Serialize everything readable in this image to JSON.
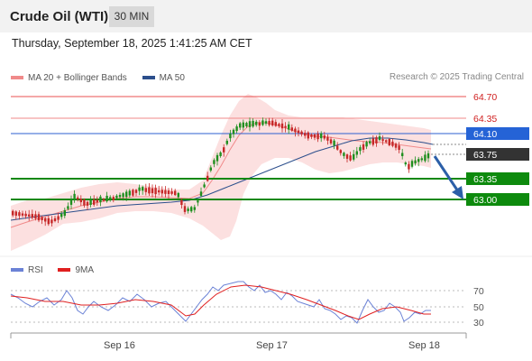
{
  "header": {
    "title": "Crude Oil (WTI)",
    "timeframe": "30 MIN"
  },
  "datetime": "Thursday, September 18, 2025 1:41:25 AM CET",
  "legend": [
    {
      "label": "MA 20 + Bollinger Bands",
      "color": "#f08a8a"
    },
    {
      "label": "MA 50",
      "color": "#2c4f8c"
    }
  ],
  "credit": "Research © 2025 Trading Central",
  "levels": [
    {
      "label": "64.70",
      "style": "red-text",
      "line": "#e85050"
    },
    {
      "label": "64.35",
      "style": "red-text",
      "line": "#f08a8a"
    },
    {
      "label": "64.10",
      "style": "blue-box",
      "line": "#2c5fd0"
    },
    {
      "label": "63.75",
      "style": "black-box",
      "line": "#888888"
    },
    {
      "label": "63.35",
      "style": "green-box",
      "line": "#118811"
    },
    {
      "label": "63.00",
      "style": "green-box",
      "line": "#118811"
    }
  ],
  "rsi_legend": [
    {
      "label": "RSI",
      "color": "#6b82d6"
    },
    {
      "label": "9MA",
      "color": "#e02020"
    }
  ],
  "rsi_levels": [
    "70",
    "50",
    "30"
  ],
  "x_labels": [
    "Sep 16",
    "Sep 17",
    "Sep 18"
  ],
  "colors": {
    "up": "#1f8f1f",
    "down": "#c62828",
    "arrow": "#2c5fa8"
  }
}
